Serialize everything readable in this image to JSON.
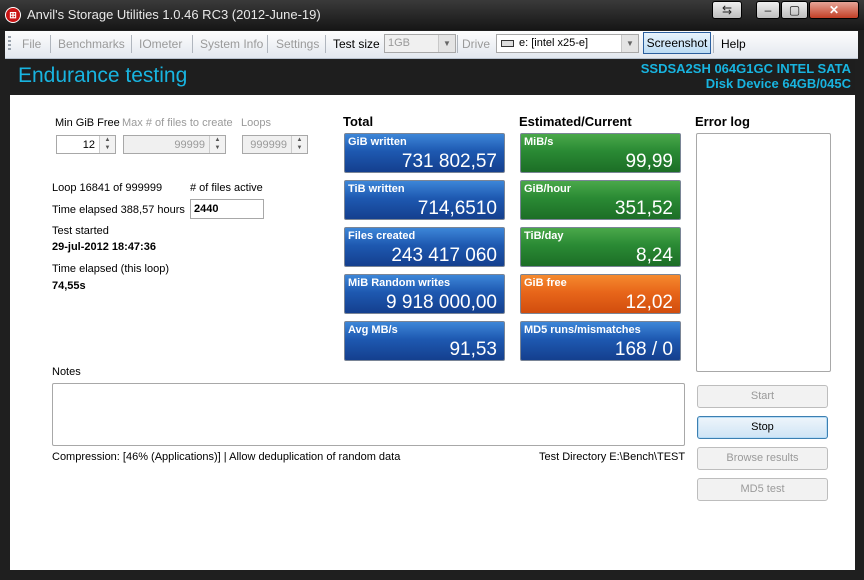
{
  "window": {
    "title": "Anvil's Storage Utilities 1.0.46 RC3 (2012-June-19)"
  },
  "toolbar": {
    "file": "File",
    "benchmarks": "Benchmarks",
    "iometer": "IOmeter",
    "system_info": "System Info",
    "settings": "Settings",
    "test_size_label": "Test size",
    "test_size_value": "1GB",
    "drive_label": "Drive",
    "drive_value": "e: [intel x25-e]",
    "screenshot": "Screenshot",
    "help": "Help"
  },
  "header": {
    "title": "Endurance testing",
    "model_line1": "SSDSA2SH 064G1GC INTEL SATA",
    "model_line2": "Disk Device 64GB/045C"
  },
  "settings": {
    "min_gib_free_label": "Min GiB Free",
    "min_gib_free_value": "12",
    "max_files_label": "Max # of files to create",
    "max_files_value": "99999",
    "loops_label": "Loops",
    "loops_value": "999999"
  },
  "status": {
    "loop": "Loop 16841 of 999999",
    "files_active_label": "# of files active",
    "files_active_value": "2440",
    "time_elapsed": "Time elapsed 388,57 hours",
    "test_started_label": "Test started",
    "test_started_value": "29-jul-2012 18:47:36",
    "time_elapsed_loop_label": "Time elapsed (this loop)",
    "time_elapsed_loop_value": "74,55s"
  },
  "total": {
    "heading": "Total",
    "tiles": [
      {
        "title": "GiB written",
        "value": "731 802,57"
      },
      {
        "title": "TiB written",
        "value": "714,6510"
      },
      {
        "title": "Files created",
        "value": "243 417 060"
      },
      {
        "title": "MiB Random writes",
        "value": "9 918 000,00"
      },
      {
        "title": "Avg MB/s",
        "value": "91,53"
      }
    ]
  },
  "estimated": {
    "heading": "Estimated/Current",
    "tiles": [
      {
        "title": "MiB/s",
        "value": "99,99"
      },
      {
        "title": "GiB/hour",
        "value": "351,52"
      },
      {
        "title": "TiB/day",
        "value": "8,24"
      },
      {
        "title": "GiB free",
        "value": "12,02"
      },
      {
        "title": "MD5 runs/mismatches",
        "value": "168 / 0"
      }
    ]
  },
  "error_log": {
    "heading": "Error log"
  },
  "notes": {
    "label": "Notes"
  },
  "footer": {
    "compression": "Compression: [46% (Applications)] | Allow deduplication of random data",
    "test_directory": "Test Directory E:\\Bench\\TEST"
  },
  "buttons": {
    "start": "Start",
    "stop": "Stop",
    "browse_results": "Browse results",
    "md5_test": "MD5 test"
  },
  "colors": {
    "header_accent": "#18b4e0",
    "tile_blue": "#1e59b1",
    "tile_green": "#2a8a34",
    "tile_orange": "#e8661a"
  }
}
